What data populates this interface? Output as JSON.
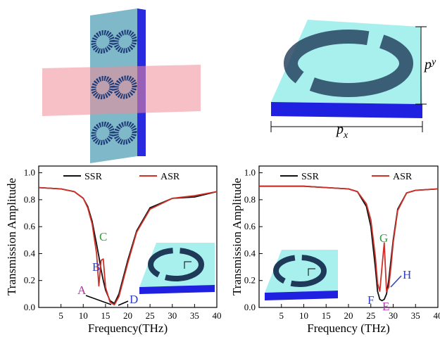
{
  "chart_data": [
    {
      "type": "line",
      "xlabel": "Frequency(THz)",
      "ylabel": "Transmission Amplitude",
      "xlim": [
        0,
        40
      ],
      "ylim": [
        0,
        1.05
      ],
      "xticks": [
        5,
        10,
        15,
        20,
        25,
        30,
        35,
        40
      ],
      "yticks": [
        {
          "value": 0,
          "label": "0.0"
        },
        0.2,
        0.4,
        0.6,
        0.8,
        {
          "value": 1,
          "label": "1.0"
        }
      ],
      "x": [
        0,
        5,
        8,
        10,
        11,
        12,
        13,
        13.5,
        14,
        14.5,
        15,
        16,
        17,
        18,
        20,
        22,
        25,
        30,
        35,
        40
      ],
      "series": [
        {
          "name": "SSR",
          "color": "#111111",
          "values": [
            0.89,
            0.88,
            0.86,
            0.81,
            0.75,
            0.64,
            0.47,
            0.38,
            0.28,
            0.2,
            0.13,
            0.05,
            0.03,
            0.1,
            0.35,
            0.57,
            0.74,
            0.81,
            0.82,
            0.86
          ]
        },
        {
          "name": "ASR",
          "color": "#d03028",
          "values": [
            0.89,
            0.88,
            0.86,
            0.81,
            0.74,
            0.62,
            0.4,
            0.16,
            0.35,
            0.36,
            0.15,
            0.04,
            0.02,
            0.08,
            0.33,
            0.56,
            0.73,
            0.81,
            0.83,
            0.86
          ]
        }
      ],
      "annotations": [
        {
          "text": "A",
          "color": "#b030a0"
        },
        {
          "text": "B",
          "color": "#3040c0"
        },
        {
          "text": "C",
          "color": "#30a040"
        },
        {
          "text": "D",
          "color": "#3040c0"
        }
      ]
    },
    {
      "type": "line",
      "xlabel": "Frequency (THz)",
      "ylabel": "Transmission Amplitude",
      "xlim": [
        0,
        40
      ],
      "ylim": [
        0,
        1.05
      ],
      "xticks": [
        5,
        10,
        15,
        20,
        25,
        30,
        35,
        40
      ],
      "yticks": [
        {
          "value": 0,
          "label": "0.0"
        },
        0.2,
        0.4,
        0.6,
        0.8,
        {
          "value": 1,
          "label": "1.0"
        }
      ],
      "x": [
        0,
        5,
        10,
        15,
        20,
        22,
        24,
        25,
        26,
        26.5,
        27,
        27.5,
        28,
        28.5,
        29,
        29.5,
        30,
        31,
        33,
        35,
        40
      ],
      "series": [
        {
          "name": "SSR",
          "color": "#111111",
          "values": [
            0.9,
            0.9,
            0.9,
            0.89,
            0.88,
            0.86,
            0.75,
            0.6,
            0.3,
            0.12,
            0.06,
            0.05,
            0.06,
            0.1,
            0.2,
            0.35,
            0.5,
            0.73,
            0.85,
            0.87,
            0.88
          ]
        },
        {
          "name": "ASR",
          "color": "#d03028",
          "values": [
            0.9,
            0.9,
            0.9,
            0.89,
            0.88,
            0.86,
            0.77,
            0.65,
            0.38,
            0.18,
            0.12,
            0.3,
            0.48,
            0.12,
            0.15,
            0.3,
            0.48,
            0.72,
            0.85,
            0.87,
            0.88
          ]
        }
      ],
      "annotations": [
        {
          "text": "F",
          "color": "#3040c0"
        },
        {
          "text": "G",
          "color": "#30a040"
        },
        {
          "text": "E",
          "color": "#c030c0"
        },
        {
          "text": "H",
          "color": "#3040c0"
        }
      ]
    }
  ],
  "illustration": {
    "py_main": "p",
    "py_sub": "y",
    "px_main": "p",
    "px_sub": "x"
  }
}
